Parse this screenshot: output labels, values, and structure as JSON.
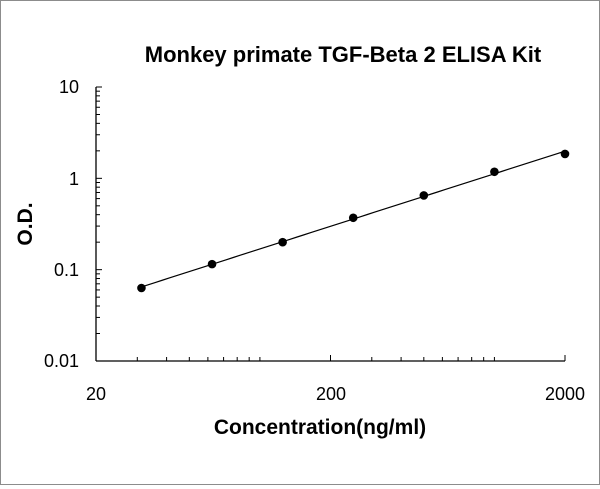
{
  "chart_data": {
    "type": "scatter",
    "title": "Monkey primate TGF-Beta 2 ELISA Kit",
    "xlabel": "Concentration(ng/ml)",
    "ylabel": "O.D.",
    "x_scale": "log",
    "y_scale": "log",
    "xlim": [
      20,
      2000
    ],
    "ylim": [
      0.01,
      10
    ],
    "x_tick_labels": [
      "20",
      "200",
      "2000"
    ],
    "y_tick_labels": [
      "10",
      "1",
      "0.1",
      "0.01"
    ],
    "grid": false,
    "legend": "none",
    "series": [
      {
        "x": [
          31.25,
          62.5,
          125,
          250,
          500,
          1000,
          2000
        ],
        "y": [
          0.063,
          0.115,
          0.2,
          0.37,
          0.65,
          1.18,
          1.85
        ]
      }
    ],
    "fit_curve": true,
    "colors": {
      "points": "#000000",
      "curve": "#000000",
      "axis": "#000000"
    }
  }
}
